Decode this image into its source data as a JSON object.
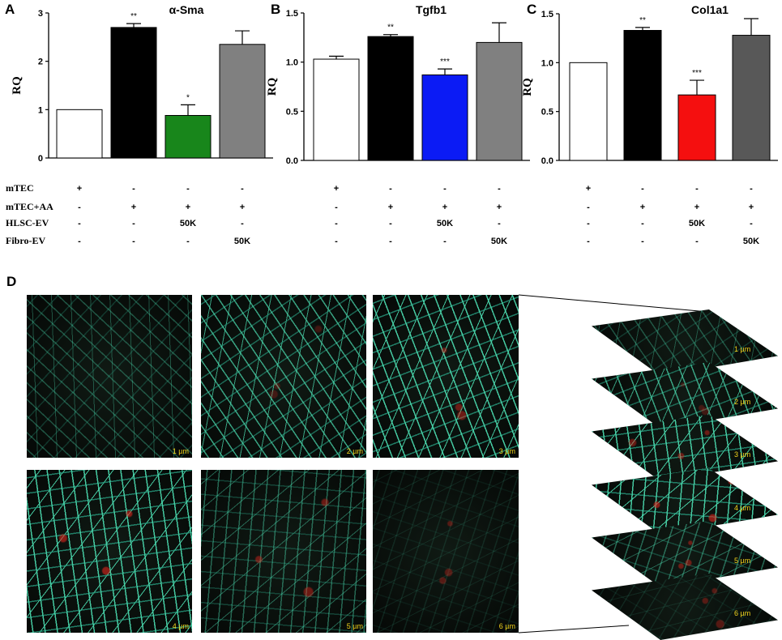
{
  "chart_data": [
    {
      "panel": "A",
      "title": "α-Sma",
      "type": "bar",
      "ylabel": "RQ",
      "ylim": [
        0,
        3
      ],
      "yticks": [
        "0",
        "1",
        "2",
        "3"
      ],
      "bars": [
        {
          "value": 1.0,
          "error": 0.0,
          "sig": "",
          "color": "#ffffff"
        },
        {
          "value": 2.7,
          "error": 0.08,
          "sig": "**",
          "color": "#000000"
        },
        {
          "value": 0.88,
          "error": 0.22,
          "sig": "*",
          "color": "#18861b"
        },
        {
          "value": 2.35,
          "error": 0.28,
          "sig": "",
          "color": "#808080"
        }
      ]
    },
    {
      "panel": "B",
      "title": "Tgfb1",
      "type": "bar",
      "ylabel": "RQ",
      "ylim": [
        0,
        1.5
      ],
      "yticks": [
        "0.0",
        "0.5",
        "1.0",
        "1.5"
      ],
      "bars": [
        {
          "value": 1.03,
          "error": 0.03,
          "sig": "",
          "color": "#ffffff"
        },
        {
          "value": 1.26,
          "error": 0.02,
          "sig": "**",
          "color": "#000000"
        },
        {
          "value": 0.87,
          "error": 0.06,
          "sig": "***",
          "color": "#0b1bf5"
        },
        {
          "value": 1.2,
          "error": 0.2,
          "sig": "",
          "color": "#808080"
        }
      ]
    },
    {
      "panel": "C",
      "title": "Col1a1",
      "type": "bar",
      "ylabel": "RQ",
      "ylim": [
        0,
        1.5
      ],
      "yticks": [
        "0.0",
        "0.5",
        "1.0",
        "1.5"
      ],
      "bars": [
        {
          "value": 1.0,
          "error": 0.0,
          "sig": "",
          "color": "#ffffff"
        },
        {
          "value": 1.33,
          "error": 0.03,
          "sig": "**",
          "color": "#000000"
        },
        {
          "value": 0.67,
          "error": 0.15,
          "sig": "***",
          "color": "#f50f0f"
        },
        {
          "value": 1.28,
          "error": 0.17,
          "sig": "",
          "color": "#585858"
        }
      ]
    }
  ],
  "conditions": [
    {
      "label": "mTEC",
      "values": [
        "+",
        "-",
        "-",
        "-"
      ]
    },
    {
      "label": "mTEC+AA",
      "values": [
        "-",
        "+",
        "+",
        "+"
      ]
    },
    {
      "label": "HLSC-EV",
      "values": [
        "-",
        "-",
        "50K",
        "-"
      ]
    },
    {
      "label": "Fibro-EV",
      "values": [
        "-",
        "-",
        "-",
        "50K"
      ]
    }
  ],
  "panel_d": {
    "label": "D",
    "images": [
      {
        "caption": "1 µm",
        "green": 0.35,
        "red": 0.0
      },
      {
        "caption": "2 µm",
        "green": 0.75,
        "red": 0.25
      },
      {
        "caption": "3 µm",
        "green": 0.95,
        "red": 0.45
      },
      {
        "caption": "4 µm",
        "green": 0.95,
        "red": 0.6
      },
      {
        "caption": "5 µm",
        "green": 0.45,
        "red": 0.45
      },
      {
        "caption": "6 µm",
        "green": 0.12,
        "red": 0.35
      }
    ],
    "colors": {
      "green": "#48d2a8",
      "red": "#e0241c",
      "caption": "#f1d21b"
    }
  }
}
